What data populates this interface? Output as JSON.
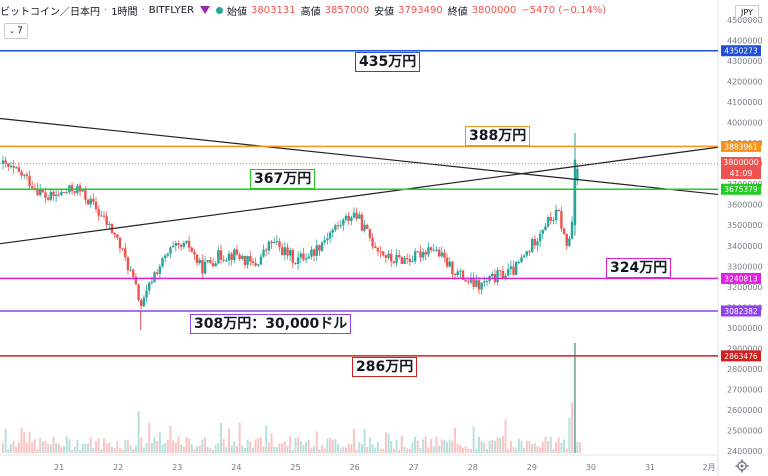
{
  "header": {
    "symbol": "ビットコイン／日本円",
    "interval": "1時間",
    "exchange": "BITFLYER",
    "open_label": "始値",
    "open": "3803131",
    "high_label": "高値",
    "high": "3857000",
    "low_label": "安値",
    "low": "3793490",
    "close_label": "終値",
    "close": "3800000",
    "change": "−5470 (−0.14%)"
  },
  "timeframe_button": "7",
  "currency_badge": "JPY",
  "price_badges": {
    "last": "3800000",
    "countdown": "41:09"
  },
  "callouts": {
    "c435": "435万円",
    "c388": "388万円",
    "c367": "367万円",
    "c324": "324万円",
    "c308": "308万円：30,000ドル",
    "c286": "286万円"
  },
  "colors": {
    "up": "#26a69a",
    "down": "#ef5350",
    "h435": "#1e4fd6",
    "h388": "#f7931a",
    "h367": "#22cc22",
    "h324": "#e020e0",
    "h308": "#8f45e8",
    "h286": "#d02020",
    "trend": "#222222"
  },
  "chart_data": {
    "type": "candlestick",
    "ylim": [
      2400000,
      4500000
    ],
    "y_ticks": [
      4500000,
      4400000,
      4300000,
      4200000,
      4100000,
      4000000,
      3900000,
      3800000,
      3700000,
      3600000,
      3500000,
      3400000,
      3300000,
      3200000,
      3100000,
      3000000,
      2900000,
      2800000,
      2700000,
      2600000,
      2500000,
      2400000
    ],
    "x_ticks": [
      {
        "label": "21",
        "t": 21
      },
      {
        "label": "22",
        "t": 22
      },
      {
        "label": "23",
        "t": 23
      },
      {
        "label": "24",
        "t": 24
      },
      {
        "label": "25",
        "t": 25
      },
      {
        "label": "26",
        "t": 26
      },
      {
        "label": "27",
        "t": 27
      },
      {
        "label": "28",
        "t": 28
      },
      {
        "label": "29",
        "t": 29
      },
      {
        "label": "30",
        "t": 30
      },
      {
        "label": "31",
        "t": 31
      },
      {
        "label": "2月",
        "t": 32
      }
    ],
    "xlim": [
      20.0,
      32.15
    ],
    "horizontal_levels": [
      {
        "value": 4350273,
        "color_key": "h435"
      },
      {
        "value": 3883961,
        "color_key": "h388"
      },
      {
        "value": 3675379,
        "color_key": "h367"
      },
      {
        "value": 3240813,
        "color_key": "h324"
      },
      {
        "value": 3082382,
        "color_key": "h308"
      },
      {
        "value": 2863476,
        "color_key": "h286"
      }
    ],
    "trendlines": [
      {
        "t1": 20.0,
        "v1": 4020000,
        "t2": 32.15,
        "v2": 3650000
      },
      {
        "t1": 20.0,
        "v1": 3410000,
        "t2": 32.15,
        "v2": 3880000
      }
    ],
    "price_path": [
      [
        20.0,
        3800000
      ],
      [
        20.4,
        3740000
      ],
      [
        20.8,
        3630000
      ],
      [
        21.3,
        3680000
      ],
      [
        21.6,
        3590000
      ],
      [
        21.95,
        3450000
      ],
      [
        22.2,
        3280000
      ],
      [
        22.4,
        3100000
      ],
      [
        22.6,
        3260000
      ],
      [
        22.9,
        3380000
      ],
      [
        23.2,
        3400000
      ],
      [
        23.4,
        3290000
      ],
      [
        23.7,
        3350000
      ],
      [
        24.0,
        3360000
      ],
      [
        24.3,
        3300000
      ],
      [
        24.6,
        3420000
      ],
      [
        25.0,
        3330000
      ],
      [
        25.3,
        3370000
      ],
      [
        25.6,
        3470000
      ],
      [
        26.0,
        3560000
      ],
      [
        26.3,
        3420000
      ],
      [
        26.6,
        3330000
      ],
      [
        27.0,
        3340000
      ],
      [
        27.3,
        3400000
      ],
      [
        27.6,
        3300000
      ],
      [
        27.9,
        3230000
      ],
      [
        28.1,
        3200000
      ],
      [
        28.4,
        3250000
      ],
      [
        28.7,
        3280000
      ],
      [
        28.95,
        3380000
      ],
      [
        29.2,
        3500000
      ],
      [
        29.45,
        3560000
      ],
      [
        29.6,
        3380000
      ],
      [
        29.68,
        3520000
      ],
      [
        29.73,
        3760000
      ],
      [
        29.78,
        3810000
      ]
    ],
    "volume_spikes": [
      [
        22.35,
        0.38
      ],
      [
        29.73,
        1.0
      ],
      [
        29.69,
        0.46
      ],
      [
        29.62,
        0.32
      ],
      [
        26.0,
        0.22
      ],
      [
        28.0,
        0.24
      ],
      [
        20.1,
        0.22
      ],
      [
        24.6,
        0.18
      ]
    ]
  }
}
